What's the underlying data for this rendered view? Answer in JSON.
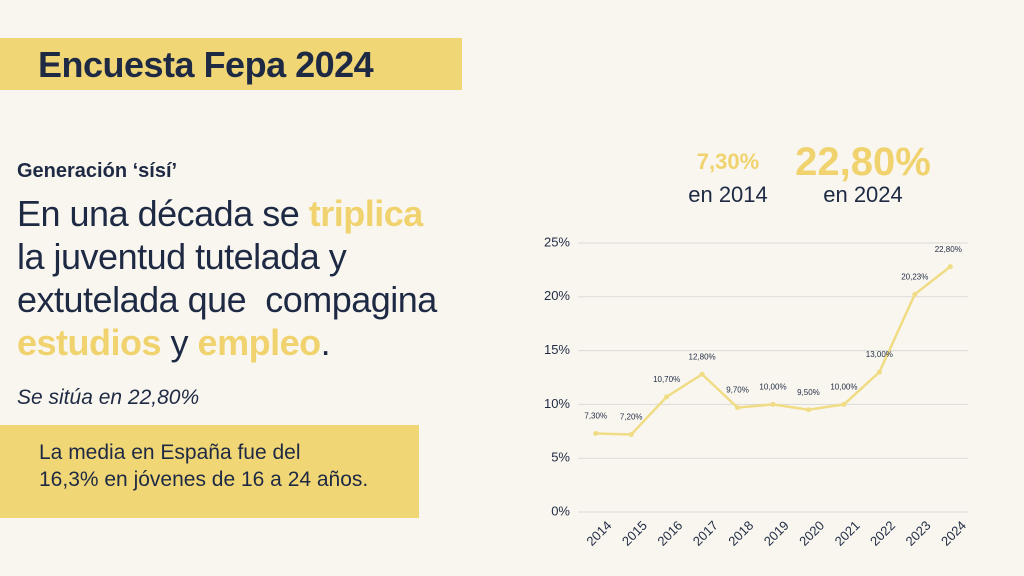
{
  "title": "Encuesta Fepa 2024",
  "subtitle": "Generación ‘sísí’",
  "headline": {
    "highlight_color": "#f0d36e",
    "lines": [
      [
        {
          "text": "En una década se "
        },
        {
          "text": "triplica",
          "highlight": true
        }
      ],
      [
        {
          "text": "la juventud tutelada y"
        }
      ],
      [
        {
          "text": "extutelada que  compagina"
        }
      ],
      [
        {
          "text": "estudios",
          "highlight": true
        },
        {
          "text": " y "
        },
        {
          "text": "empleo",
          "highlight": true
        },
        {
          "text": "."
        }
      ]
    ]
  },
  "note": "Se sitúa en 22,80%",
  "callout": {
    "lines": [
      "La media en España fue del",
      "16,3% en jóvenes de 16 a 24 años."
    ]
  },
  "stats": [
    {
      "value": "7,30%",
      "caption": "en 2014"
    },
    {
      "value": "22,80%",
      "caption": "en 2024"
    }
  ],
  "chart_data": {
    "type": "line",
    "categories": [
      "2014",
      "2015",
      "2016",
      "2017",
      "2018",
      "2019",
      "2020",
      "2021",
      "2022",
      "2023",
      "2024"
    ],
    "values": [
      7.3,
      7.2,
      10.7,
      12.8,
      9.7,
      10.0,
      9.5,
      10.0,
      13.0,
      20.23,
      22.8
    ],
    "value_labels": [
      "7,30%",
      "7,20%",
      "10,70%",
      "12,80%",
      "9,70%",
      "10,00%",
      "9,50%",
      "10,00%",
      "13,00%",
      "20,23%",
      "22,80%"
    ],
    "color": "#f0dc85",
    "ylim": [
      0,
      25
    ],
    "yticks": [
      {
        "value": 0,
        "label": "0%"
      },
      {
        "value": 5,
        "label": "5%"
      },
      {
        "value": 10,
        "label": "10%"
      },
      {
        "value": 15,
        "label": "15%"
      },
      {
        "value": 20,
        "label": "20%"
      },
      {
        "value": 25,
        "label": "25%"
      }
    ],
    "grid": true
  }
}
